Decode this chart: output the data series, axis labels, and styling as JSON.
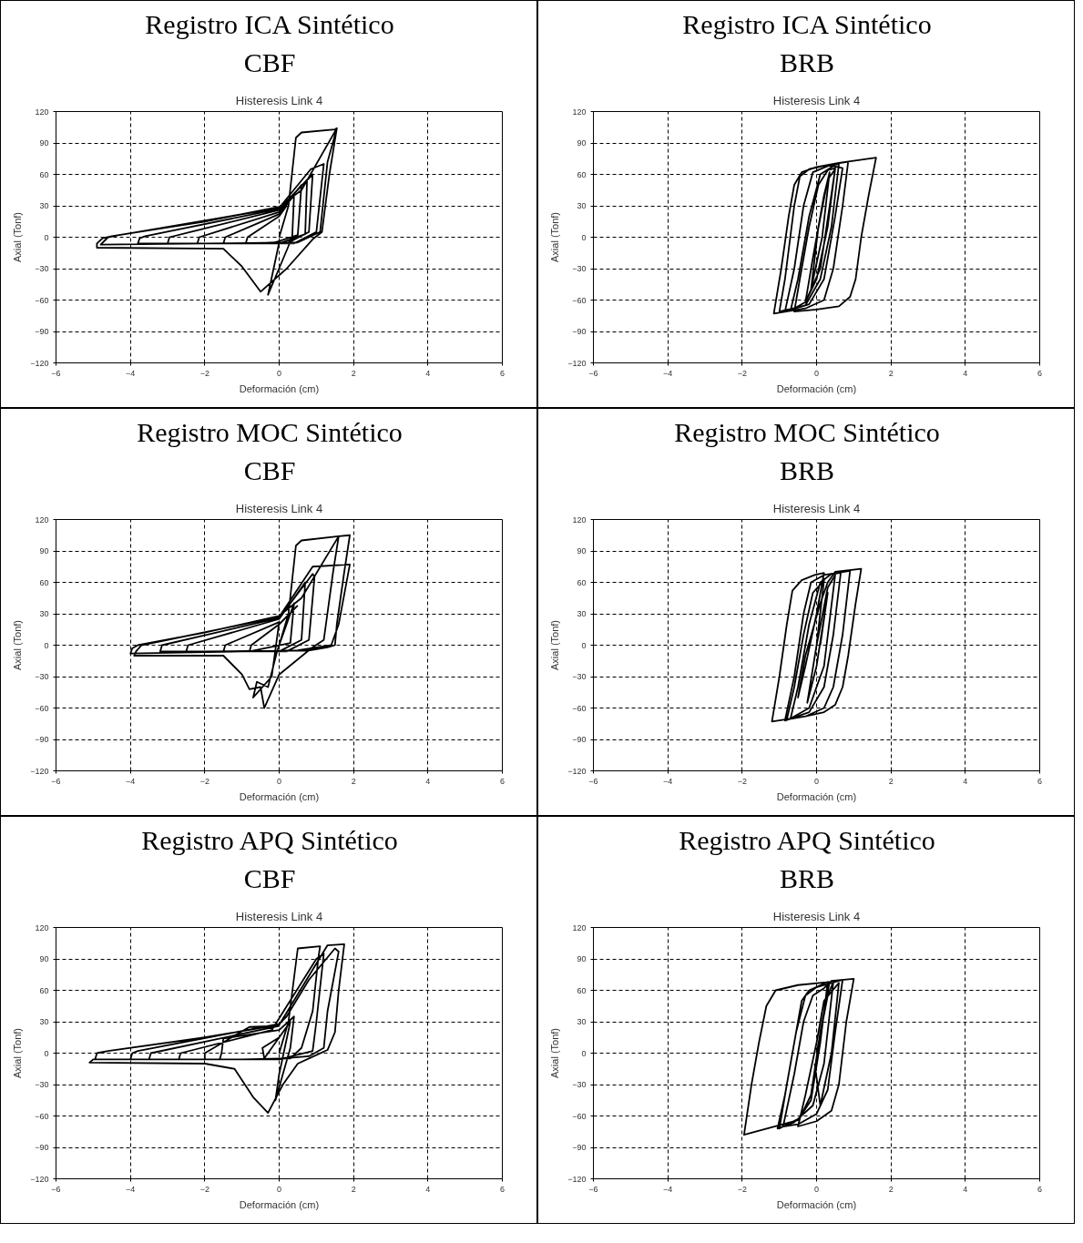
{
  "chart_data": [
    {
      "type": "line",
      "title": "Registro ICA Sintético\nCBF",
      "subtitle": "Histeresis Link 4",
      "xlabel": "Deformación (cm)",
      "ylabel": "Axial (Tonf)",
      "xlim": [
        -6,
        6
      ],
      "ylim": [
        -120,
        120
      ],
      "xticks": [
        -6,
        -4,
        -2,
        0,
        2,
        4,
        6
      ],
      "yticks": [
        -120,
        -90,
        -60,
        -30,
        0,
        30,
        60,
        90,
        120
      ],
      "grid": true,
      "series": [
        {
          "color": "#000000",
          "x": [
            0,
            0.25,
            0.45,
            0.6,
            1.5,
            1.55,
            1.35,
            1.15,
            0.9,
            0.2,
            -0.5,
            -1,
            -1.5,
            -4.9,
            -4.9,
            -4.75,
            -4.5,
            -2,
            0,
            0.6,
            1.55,
            1.3,
            1.1,
            0.5,
            -2,
            -4.8,
            -4.6,
            -4.3,
            0,
            0.85,
            1.2,
            1,
            0.4,
            -3.8,
            -3.75,
            -3.6,
            0,
            0.9,
            0.8,
            0.2,
            -3,
            -2.95,
            0,
            0.75,
            0.7,
            0,
            -2.2,
            -2.15,
            0,
            0.6,
            0.5,
            -0.2,
            -1.5,
            -1.45,
            0,
            0.4,
            0.35,
            -0.3,
            0,
            -0.9,
            -0.85,
            0,
            0.2
          ],
          "values": [
            0,
            30,
            95,
            100,
            103,
            104,
            60,
            5,
            -2,
            -30,
            -52,
            -28,
            -11,
            -10,
            -6,
            -1,
            1,
            15,
            29,
            45,
            104,
            72,
            5,
            -5,
            -6,
            -7,
            0,
            2,
            28,
            65,
            70,
            5,
            -6,
            -6,
            -1,
            1,
            27,
            60,
            5,
            -6,
            -6,
            0,
            26,
            55,
            3,
            -6,
            -6,
            0,
            24,
            50,
            2,
            -6,
            -6,
            0,
            22,
            40,
            0,
            -55,
            -5,
            -6,
            0,
            20,
            30
          ]
        }
      ]
    },
    {
      "type": "line",
      "title": "Registro ICA Sintético\nBRB",
      "subtitle": "Histeresis Link 4",
      "xlabel": "Deformación (cm)",
      "ylabel": "Axial (Tonf)",
      "xlim": [
        -6,
        6
      ],
      "ylim": [
        -120,
        120
      ],
      "xticks": [
        -6,
        -4,
        -2,
        0,
        2,
        4,
        6
      ],
      "yticks": [
        -120,
        -90,
        -60,
        -30,
        0,
        30,
        60,
        90,
        120
      ],
      "grid": true,
      "series": [
        {
          "color": "#000000",
          "x": [
            0,
            0.3,
            0.5,
            0.1,
            -0.3,
            -0.7,
            -0.5,
            -0.2,
            0.1,
            0.45,
            0.7,
            0.5,
            0.2,
            -0.2,
            -0.85,
            -0.6,
            -0.35,
            -0.1,
            0.3,
            0.6,
            0.4,
            0.1,
            -0.3,
            -1,
            -0.85,
            -0.6,
            -0.45,
            -0.2,
            0.3,
            0.85,
            0.7,
            0.45,
            0.2,
            -0.3,
            -1.15,
            -0.95,
            -0.75,
            -0.6,
            -0.4,
            0,
            0.6,
            1.6,
            1.4,
            1.2,
            1.05,
            0.9,
            0.6,
            0,
            -0.6,
            -0.45,
            -0.2,
            0.05,
            0.3,
            0.5,
            0.3,
            0,
            -0.3,
            -0.1,
            0.2,
            0.35,
            0.15,
            -0.15,
            0.05
          ],
          "values": [
            0,
            55,
            65,
            -30,
            -62,
            -70,
            -40,
            20,
            60,
            68,
            66,
            20,
            -40,
            -64,
            -71,
            -30,
            30,
            62,
            68,
            70,
            10,
            -40,
            -65,
            -71,
            -40,
            30,
            58,
            65,
            69,
            72,
            30,
            -30,
            -60,
            -68,
            -73,
            -30,
            20,
            50,
            62,
            67,
            71,
            76,
            40,
            0,
            -40,
            -57,
            -66,
            -69,
            -71,
            -40,
            10,
            50,
            64,
            66,
            10,
            -40,
            -62,
            -20,
            40,
            62,
            0,
            -50,
            10
          ]
        }
      ]
    },
    {
      "type": "line",
      "title": "Registro MOC Sintético\nCBF",
      "subtitle": "Histeresis Link 4",
      "xlabel": "Deformación (cm)",
      "ylabel": "Axial (Tonf)",
      "xlim": [
        -6,
        6
      ],
      "ylim": [
        -120,
        120
      ],
      "xticks": [
        -6,
        -4,
        -2,
        0,
        2,
        4,
        6
      ],
      "yticks": [
        -120,
        -90,
        -60,
        -30,
        0,
        30,
        60,
        90,
        120
      ],
      "grid": true,
      "series": [
        {
          "color": "#000000",
          "x": [
            0,
            0.25,
            0.45,
            0.6,
            1.6,
            1.9,
            1.75,
            1.55,
            1.5,
            1.3,
            0.8,
            -1,
            -4,
            -3.95,
            -3.8,
            -2,
            0,
            0.6,
            1.6,
            1.45,
            1.2,
            0.9,
            0,
            -0.4,
            -0.5,
            -0.8,
            -1,
            -1.5,
            -3.9,
            -3.85,
            -3.7,
            0,
            0.9,
            1.9,
            1.6,
            1.4,
            0.5,
            -2,
            -3.2,
            -3.15,
            0,
            0.9,
            0.95,
            0.8,
            0.2,
            -2.5,
            -2.45,
            0,
            0.7,
            0.6,
            0,
            -1.5,
            -1.45,
            0,
            -0.2,
            -0.7,
            -0.6,
            -0.3,
            -0.05,
            0.4,
            0.3,
            -0.8,
            -0.75,
            0,
            0.5
          ],
          "values": [
            0,
            30,
            95,
            100,
            104,
            105,
            70,
            20,
            0,
            -2,
            -5,
            -6,
            -8,
            -3,
            0,
            12,
            28,
            45,
            104,
            70,
            5,
            -2,
            -28,
            -60,
            -40,
            -42,
            -28,
            -10,
            -10,
            -6,
            0,
            27,
            75,
            77,
            20,
            0,
            -5,
            -6,
            -6,
            0,
            26,
            68,
            65,
            5,
            -6,
            -6,
            0,
            25,
            60,
            5,
            -6,
            -6,
            0,
            22,
            -30,
            -50,
            -35,
            -40,
            -5,
            40,
            2,
            -6,
            0,
            20,
            38
          ]
        }
      ]
    },
    {
      "type": "line",
      "title": "Registro MOC Sintético\nBRB",
      "subtitle": "Histeresis Link 4",
      "xlabel": "Deformación (cm)",
      "ylabel": "Axial (Tonf)",
      "xlim": [
        -6,
        6
      ],
      "ylim": [
        -120,
        120
      ],
      "xticks": [
        -6,
        -4,
        -2,
        0,
        2,
        4,
        6
      ],
      "yticks": [
        -120,
        -90,
        -60,
        -30,
        0,
        30,
        60,
        90,
        120
      ],
      "grid": true,
      "series": [
        {
          "color": "#000000",
          "x": [
            0,
            0.3,
            0.5,
            0.2,
            -0.2,
            -0.7,
            -0.5,
            -0.2,
            0.1,
            0.4,
            0.65,
            0.45,
            0.2,
            -0.2,
            -0.85,
            -0.6,
            -0.35,
            -0.15,
            0.2,
            0.9,
            0.7,
            0.45,
            0.2,
            -0.3,
            -1.2,
            -1,
            -0.8,
            -0.65,
            -0.4,
            -0.05,
            0.2,
            0,
            -0.3,
            -0.5,
            -0.3,
            0.1,
            0.3,
            0.5,
            1.2,
            1.05,
            0.85,
            0.7,
            0.5,
            0.2,
            -0.3,
            -0.8,
            -0.6,
            -0.35,
            -0.1,
            0.2,
            0,
            -0.25,
            0,
            0.3,
            0.1
          ],
          "values": [
            0,
            55,
            67,
            -20,
            -60,
            -70,
            -40,
            20,
            60,
            68,
            69,
            10,
            -40,
            -64,
            -72,
            -30,
            30,
            60,
            67,
            71,
            10,
            -40,
            -60,
            -68,
            -73,
            -30,
            20,
            52,
            62,
            67,
            69,
            30,
            -20,
            -50,
            -10,
            40,
            60,
            70,
            73,
            40,
            -10,
            -40,
            -57,
            -64,
            -68,
            -71,
            -40,
            10,
            50,
            62,
            0,
            -55,
            -20,
            50,
            0
          ]
        }
      ]
    },
    {
      "type": "line",
      "title": "Registro APQ Sintético\nCBF",
      "subtitle": "Histeresis Link 4",
      "xlabel": "Deformación (cm)",
      "ylabel": "Axial (Tonf)",
      "xlim": [
        -6,
        6
      ],
      "ylim": [
        -120,
        120
      ],
      "xticks": [
        -6,
        -4,
        -2,
        0,
        2,
        4,
        6
      ],
      "yticks": [
        -120,
        -90,
        -60,
        -30,
        0,
        30,
        60,
        90,
        120
      ],
      "grid": true,
      "series": [
        {
          "color": "#000000",
          "x": [
            0,
            0.25,
            0.5,
            1.1,
            1.05,
            0.9,
            0.6,
            0.3,
            -1,
            -4.95,
            -4.9,
            -4.6,
            -2,
            0,
            1.3,
            1.75,
            1.6,
            1.5,
            1.3,
            1.05,
            0.5,
            0.1,
            -0.3,
            -0.7,
            -1.2,
            -2,
            -5.1,
            -5,
            -4,
            -3.95,
            -3.8,
            0,
            0.2,
            0.8,
            1.5,
            1.6,
            1.3,
            1.2,
            0.8,
            -0.2,
            -3.5,
            -3.45,
            0,
            -0.8,
            -2,
            -2,
            -2.7,
            -2.65,
            -0.2,
            1,
            1.2,
            1,
            0.9,
            0,
            -1.6,
            -1.55,
            -1.5,
            0,
            0.4,
            0.3,
            -0.1,
            0,
            0.3,
            -0.4,
            -0.45,
            0
          ],
          "values": [
            0,
            30,
            100,
            102,
            90,
            40,
            5,
            -5,
            -6,
            -6,
            0,
            2,
            15,
            27,
            103,
            104,
            60,
            20,
            3,
            -1,
            -10,
            -30,
            -57,
            -42,
            -15,
            -10,
            -9,
            -6,
            -6,
            0,
            2,
            28,
            35,
            70,
            100,
            97,
            40,
            5,
            -3,
            -6,
            -6,
            0,
            26,
            25,
            0,
            -6,
            -6,
            0,
            22,
            90,
            95,
            30,
            2,
            -6,
            -6,
            0,
            14,
            22,
            35,
            5,
            -45,
            -20,
            30,
            -5,
            5,
            15
          ]
        }
      ]
    },
    {
      "type": "line",
      "title": "Registro APQ Sintético\nBRB",
      "subtitle": "Histeresis Link 4",
      "xlabel": "Deformación (cm)",
      "ylabel": "Axial (Tonf)",
      "xlim": [
        -6,
        6
      ],
      "ylim": [
        -120,
        120
      ],
      "xticks": [
        -6,
        -4,
        -2,
        0,
        2,
        4,
        6
      ],
      "yticks": [
        -120,
        -90,
        -60,
        -30,
        0,
        30,
        60,
        90,
        120
      ],
      "grid": true,
      "series": [
        {
          "color": "#000000",
          "x": [
            0,
            0.3,
            0.45,
            0.2,
            -0.1,
            -0.6,
            -1.05,
            -0.85,
            -0.6,
            -0.4,
            -0.2,
            0.3,
            0.1,
            -0.15,
            -0.5,
            -1.95,
            -1.75,
            -1.55,
            -1.35,
            -1.1,
            -0.5,
            0.35,
            0.1,
            -0.15,
            -0.45,
            -1,
            -0.8,
            -0.55,
            -0.3,
            0,
            0.7,
            0.5,
            0.3,
            0,
            -0.5,
            -0.9,
            -0.6,
            -0.35,
            -0.1,
            0.2,
            0.4,
            1,
            0.8,
            0.6,
            0.4,
            0,
            -0.5,
            -0.3,
            0,
            0.2,
            0.6,
            0.4,
            0.1,
            -0.05
          ],
          "values": [
            0,
            55,
            68,
            -10,
            -50,
            -66,
            -72,
            -40,
            10,
            50,
            60,
            68,
            10,
            -45,
            -64,
            -78,
            -30,
            10,
            45,
            60,
            65,
            68,
            20,
            -40,
            -62,
            -72,
            -30,
            20,
            55,
            63,
            70,
            20,
            -35,
            -58,
            -68,
            -70,
            -20,
            30,
            55,
            62,
            69,
            71,
            30,
            -30,
            -55,
            -65,
            -70,
            -40,
            10,
            50,
            67,
            0,
            -50,
            -10
          ]
        }
      ]
    }
  ]
}
